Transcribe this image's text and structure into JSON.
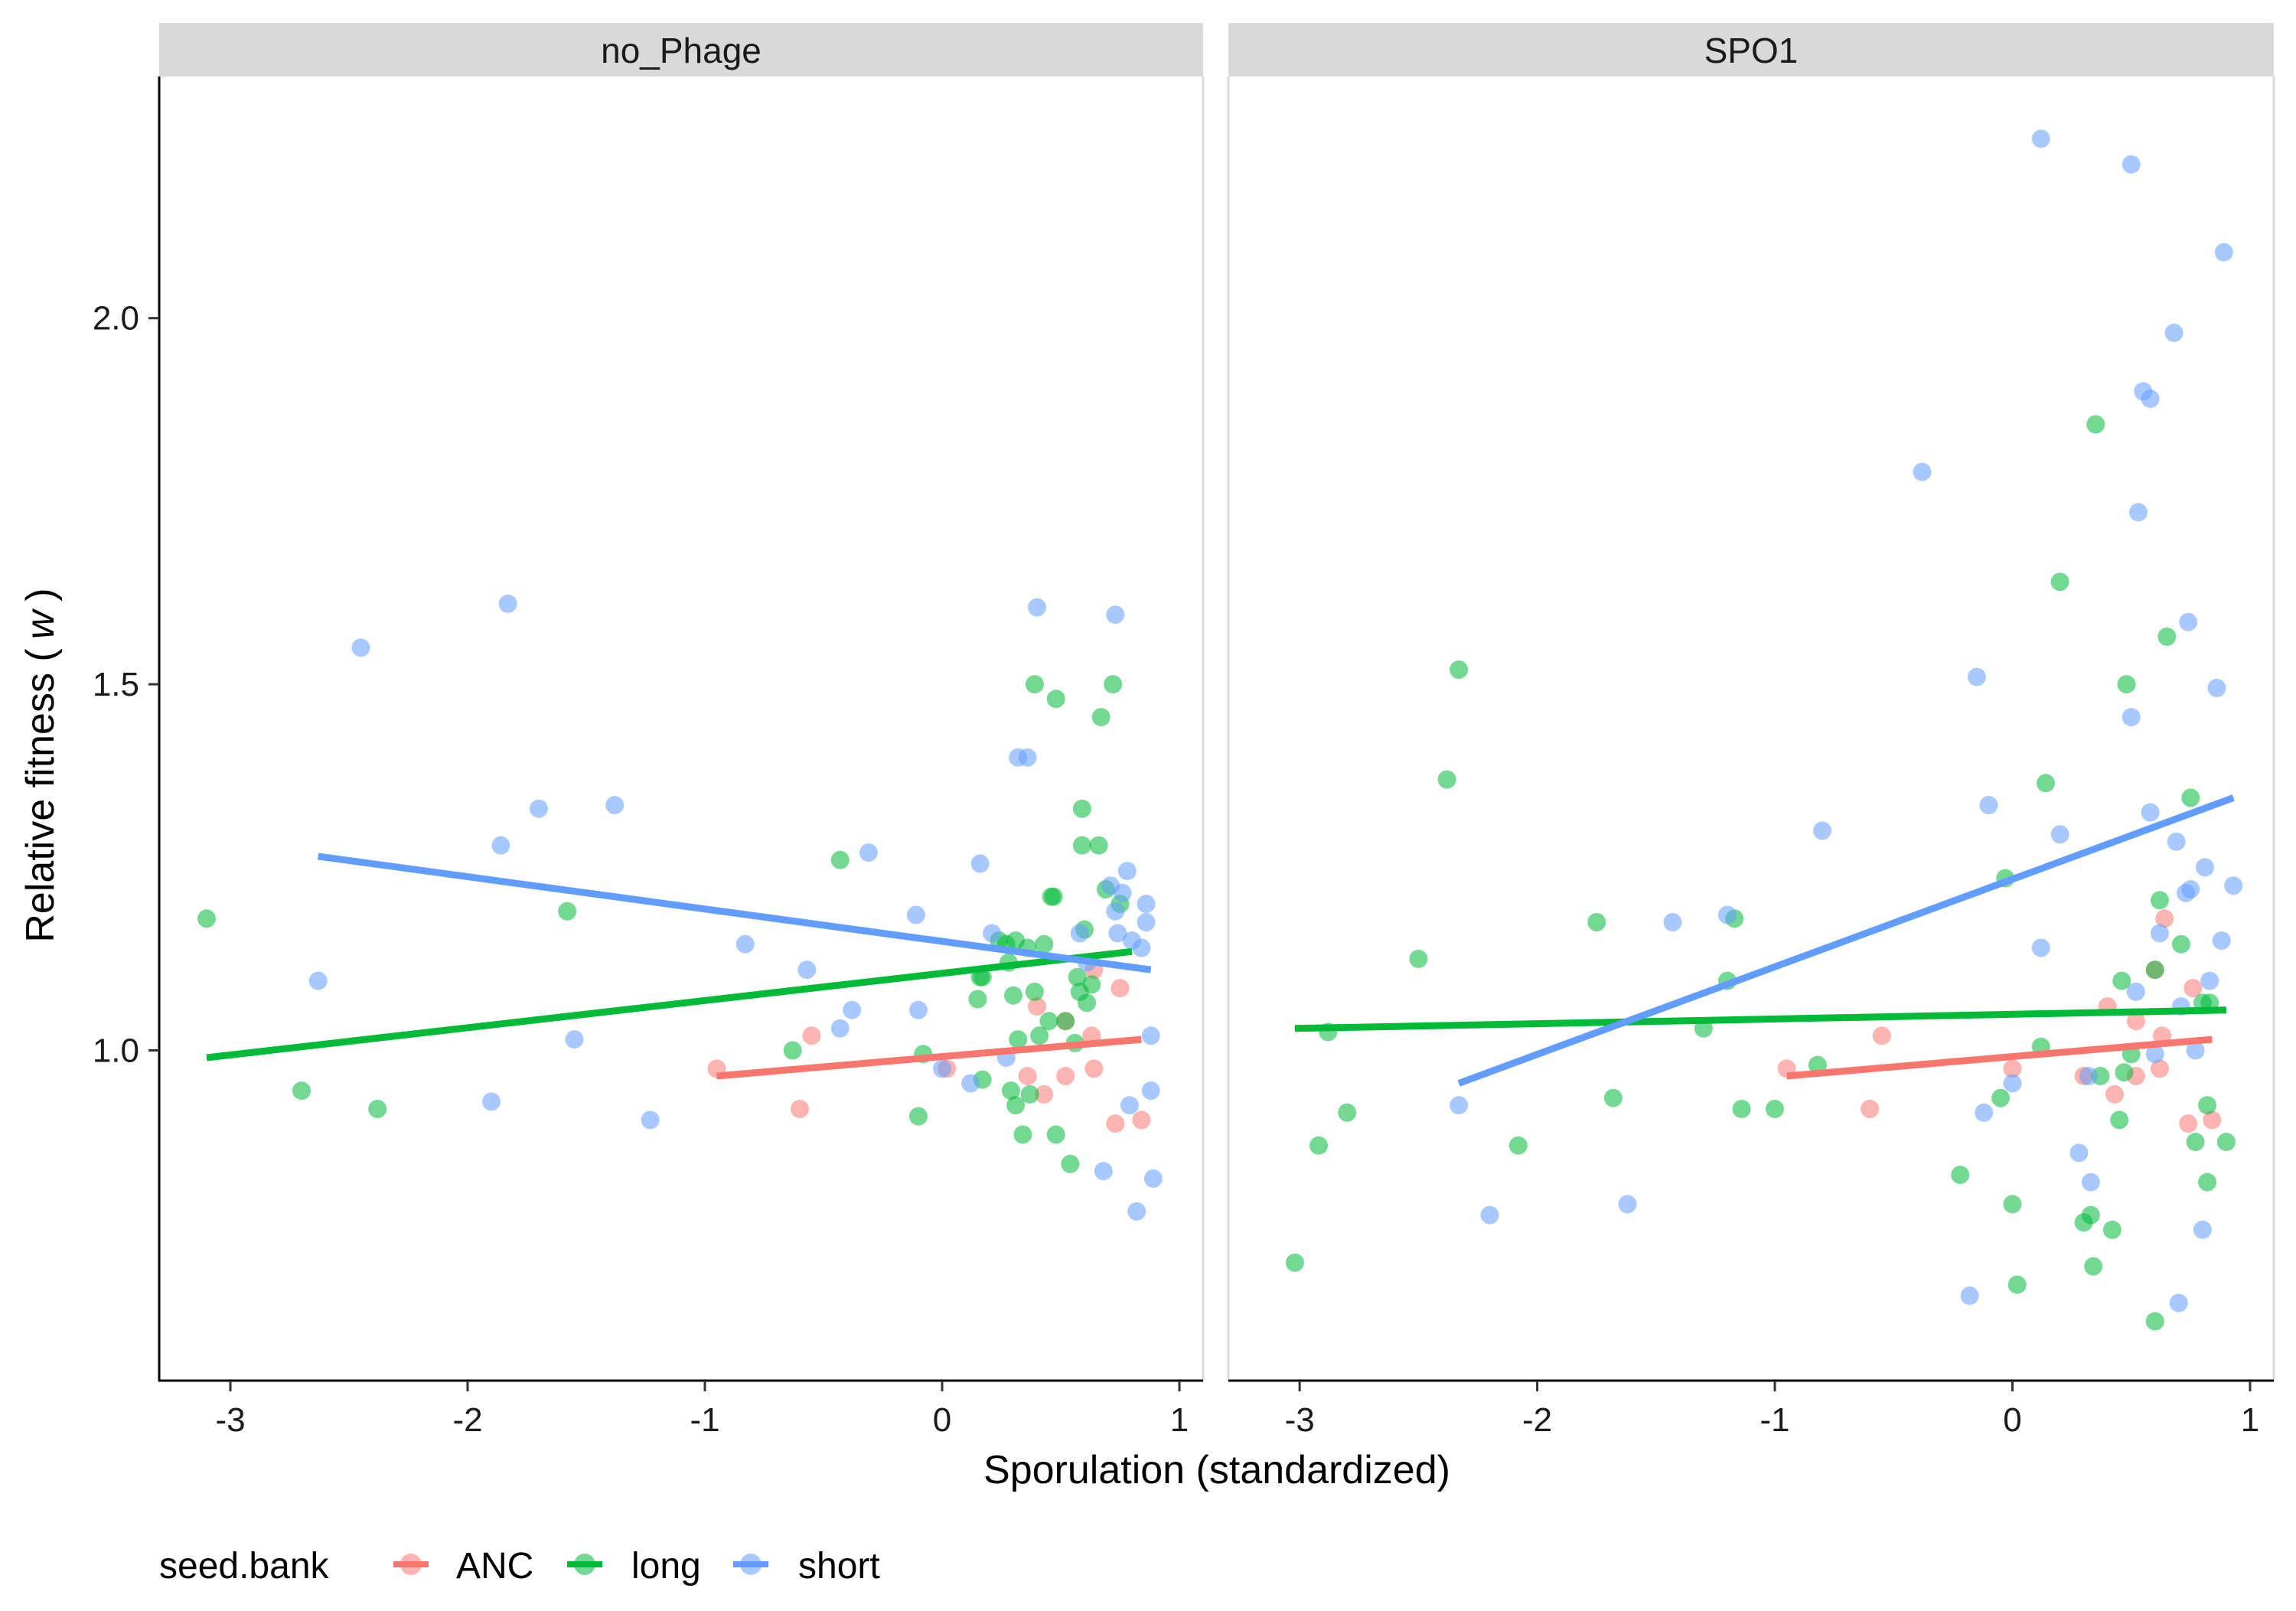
{
  "chart_data": {
    "type": "scatter",
    "xlabel": "Sporulation (standardized)",
    "ylabel_main": "Relative fitness (",
    "ylabel_italic": "w",
    "ylabel_end": ")",
    "xlim": [
      -3.3,
      1.1
    ],
    "ylim": [
      0.55,
      2.33
    ],
    "x_ticks": [
      -3,
      -2,
      -1,
      0,
      1
    ],
    "y_ticks": [
      1.0,
      1.5,
      2.0
    ],
    "y_tick_labels": [
      "1.0",
      "1.5",
      "2.0"
    ],
    "grid": false,
    "legend": {
      "title": "seed.bank",
      "position": "bottom-left",
      "entries": [
        "ANC",
        "long",
        "short"
      ]
    },
    "colors": {
      "ANC": "#F8766D",
      "long": "#00BA38",
      "short": "#619CFF"
    },
    "panels": [
      {
        "label": "no_Phage",
        "points": {
          "ANC": [
            [
              -0.95,
              0.975
            ],
            [
              -0.6,
              0.92
            ],
            [
              -0.55,
              1.02
            ],
            [
              0.02,
              0.975
            ],
            [
              0.36,
              0.965
            ],
            [
              0.4,
              1.06
            ],
            [
              0.43,
              0.94
            ],
            [
              0.52,
              1.04
            ],
            [
              0.52,
              0.965
            ],
            [
              0.63,
              1.02
            ],
            [
              0.64,
              1.11
            ],
            [
              0.64,
              0.975
            ],
            [
              0.73,
              0.9
            ],
            [
              0.75,
              1.085
            ],
            [
              0.84,
              0.905
            ]
          ],
          "long": [
            [
              -3.1,
              1.18
            ],
            [
              -2.7,
              0.945
            ],
            [
              -2.38,
              0.92
            ],
            [
              -1.58,
              1.19
            ],
            [
              -0.63,
              1.0
            ],
            [
              -0.43,
              1.26
            ],
            [
              -0.1,
              0.91
            ],
            [
              -0.08,
              0.995
            ],
            [
              0.15,
              1.07
            ],
            [
              0.16,
              1.1
            ],
            [
              0.17,
              1.1
            ],
            [
              0.17,
              0.96
            ],
            [
              0.24,
              1.15
            ],
            [
              0.27,
              1.145
            ],
            [
              0.28,
              1.12
            ],
            [
              0.29,
              0.945
            ],
            [
              0.3,
              1.075
            ],
            [
              0.31,
              0.925
            ],
            [
              0.31,
              1.15
            ],
            [
              0.32,
              1.015
            ],
            [
              0.34,
              0.885
            ],
            [
              0.36,
              1.14
            ],
            [
              0.37,
              0.94
            ],
            [
              0.39,
              1.5
            ],
            [
              0.39,
              1.08
            ],
            [
              0.41,
              1.02
            ],
            [
              0.43,
              1.145
            ],
            [
              0.45,
              1.04
            ],
            [
              0.46,
              1.21
            ],
            [
              0.47,
              1.21
            ],
            [
              0.48,
              0.885
            ],
            [
              0.48,
              1.48
            ],
            [
              0.52,
              1.04
            ],
            [
              0.54,
              0.845
            ],
            [
              0.56,
              1.01
            ],
            [
              0.57,
              1.1
            ],
            [
              0.58,
              1.08
            ],
            [
              0.59,
              1.33
            ],
            [
              0.59,
              1.28
            ],
            [
              0.6,
              1.165
            ],
            [
              0.61,
              1.065
            ],
            [
              0.63,
              1.09
            ],
            [
              0.66,
              1.28
            ],
            [
              0.67,
              1.455
            ],
            [
              0.69,
              1.22
            ],
            [
              0.72,
              1.5
            ],
            [
              0.75,
              1.2
            ]
          ],
          "short": [
            [
              -2.63,
              1.095
            ],
            [
              -2.45,
              1.55
            ],
            [
              -1.86,
              1.28
            ],
            [
              -1.83,
              1.61
            ],
            [
              -1.7,
              1.33
            ],
            [
              -1.9,
              0.93
            ],
            [
              -1.55,
              1.015
            ],
            [
              -1.38,
              1.335
            ],
            [
              -1.23,
              0.905
            ],
            [
              -0.83,
              1.145
            ],
            [
              -0.57,
              1.11
            ],
            [
              -0.43,
              1.03
            ],
            [
              -0.38,
              1.055
            ],
            [
              -0.31,
              1.27
            ],
            [
              -0.11,
              1.185
            ],
            [
              -0.1,
              1.055
            ],
            [
              0.0,
              0.975
            ],
            [
              0.12,
              0.955
            ],
            [
              0.16,
              1.255
            ],
            [
              0.21,
              1.16
            ],
            [
              0.27,
              0.99
            ],
            [
              0.32,
              1.4
            ],
            [
              0.36,
              1.4
            ],
            [
              0.4,
              1.605
            ],
            [
              0.58,
              1.16
            ],
            [
              0.61,
              1.12
            ],
            [
              0.68,
              0.835
            ],
            [
              0.71,
              1.225
            ],
            [
              0.73,
              1.595
            ],
            [
              0.73,
              1.19
            ],
            [
              0.74,
              1.16
            ],
            [
              0.76,
              1.215
            ],
            [
              0.78,
              1.245
            ],
            [
              0.79,
              0.925
            ],
            [
              0.8,
              1.15
            ],
            [
              0.82,
              0.78
            ],
            [
              0.84,
              1.14
            ],
            [
              0.86,
              1.2
            ],
            [
              0.86,
              1.175
            ],
            [
              0.88,
              1.02
            ],
            [
              0.88,
              0.945
            ],
            [
              0.89,
              0.825
            ]
          ]
        },
        "lines": {
          "ANC": [
            [
              -0.95,
              0.965
            ],
            [
              0.84,
              1.015
            ]
          ],
          "long": [
            [
              -3.1,
              0.99
            ],
            [
              0.8,
              1.135
            ]
          ],
          "short": [
            [
              -2.63,
              1.265
            ],
            [
              0.88,
              1.11
            ]
          ]
        }
      },
      {
        "label": "SPO1",
        "points": {
          "ANC": [
            [
              -0.95,
              0.975
            ],
            [
              -0.6,
              0.92
            ],
            [
              -0.55,
              1.02
            ],
            [
              0.0,
              0.975
            ],
            [
              0.3,
              0.965
            ],
            [
              0.4,
              1.06
            ],
            [
              0.43,
              0.94
            ],
            [
              0.52,
              1.04
            ],
            [
              0.52,
              0.965
            ],
            [
              0.6,
              1.11
            ],
            [
              0.62,
              0.975
            ],
            [
              0.63,
              1.02
            ],
            [
              0.64,
              1.18
            ],
            [
              0.74,
              0.9
            ],
            [
              0.76,
              1.085
            ],
            [
              0.84,
              0.905
            ]
          ],
          "long": [
            [
              -3.02,
              0.71
            ],
            [
              -2.92,
              0.87
            ],
            [
              -2.88,
              1.025
            ],
            [
              -2.8,
              0.915
            ],
            [
              -2.5,
              1.125
            ],
            [
              -2.38,
              1.37
            ],
            [
              -2.33,
              1.52
            ],
            [
              -2.08,
              0.87
            ],
            [
              -1.75,
              1.175
            ],
            [
              -1.68,
              0.935
            ],
            [
              -1.3,
              1.03
            ],
            [
              -1.2,
              1.095
            ],
            [
              -1.17,
              1.18
            ],
            [
              -1.14,
              0.92
            ],
            [
              -1.0,
              0.92
            ],
            [
              -0.82,
              0.98
            ],
            [
              -0.22,
              0.83
            ],
            [
              -0.05,
              0.935
            ],
            [
              -0.03,
              1.235
            ],
            [
              0.0,
              0.79
            ],
            [
              0.02,
              0.68
            ],
            [
              0.12,
              1.005
            ],
            [
              0.14,
              1.365
            ],
            [
              0.2,
              1.64
            ],
            [
              0.3,
              0.765
            ],
            [
              0.33,
              0.775
            ],
            [
              0.34,
              0.705
            ],
            [
              0.35,
              1.855
            ],
            [
              0.37,
              0.965
            ],
            [
              0.42,
              0.755
            ],
            [
              0.45,
              0.905
            ],
            [
              0.46,
              1.095
            ],
            [
              0.47,
              0.97
            ],
            [
              0.48,
              1.5
            ],
            [
              0.5,
              0.995
            ],
            [
              0.6,
              1.11
            ],
            [
              0.6,
              0.63
            ],
            [
              0.62,
              1.205
            ],
            [
              0.65,
              1.565
            ],
            [
              0.71,
              1.145
            ],
            [
              0.75,
              1.345
            ],
            [
              0.77,
              0.875
            ],
            [
              0.8,
              1.065
            ],
            [
              0.82,
              0.925
            ],
            [
              0.82,
              0.82
            ],
            [
              0.83,
              1.065
            ],
            [
              0.9,
              0.875
            ]
          ],
          "short": [
            [
              -2.33,
              0.925
            ],
            [
              -2.2,
              0.775
            ],
            [
              -1.62,
              0.79
            ],
            [
              -1.43,
              1.175
            ],
            [
              -1.2,
              1.185
            ],
            [
              -0.8,
              1.3
            ],
            [
              -0.38,
              1.79
            ],
            [
              -0.18,
              0.665
            ],
            [
              -0.15,
              1.51
            ],
            [
              -0.12,
              0.915
            ],
            [
              -0.1,
              1.335
            ],
            [
              0.0,
              0.955
            ],
            [
              0.12,
              2.245
            ],
            [
              0.12,
              1.14
            ],
            [
              0.2,
              1.295
            ],
            [
              0.28,
              0.86
            ],
            [
              0.32,
              0.965
            ],
            [
              0.33,
              0.82
            ],
            [
              0.5,
              2.21
            ],
            [
              0.5,
              1.455
            ],
            [
              0.52,
              1.08
            ],
            [
              0.53,
              1.735
            ],
            [
              0.55,
              1.9
            ],
            [
              0.58,
              1.89
            ],
            [
              0.58,
              1.325
            ],
            [
              0.6,
              0.995
            ],
            [
              0.62,
              1.16
            ],
            [
              0.68,
              1.98
            ],
            [
              0.69,
              1.285
            ],
            [
              0.7,
              0.655
            ],
            [
              0.71,
              1.06
            ],
            [
              0.73,
              1.215
            ],
            [
              0.74,
              1.585
            ],
            [
              0.75,
              1.22
            ],
            [
              0.77,
              1.0
            ],
            [
              0.8,
              0.755
            ],
            [
              0.81,
              1.25
            ],
            [
              0.83,
              1.095
            ],
            [
              0.86,
              1.495
            ],
            [
              0.88,
              1.15
            ],
            [
              0.89,
              2.09
            ],
            [
              0.93,
              1.225
            ]
          ]
        },
        "lines": {
          "ANC": [
            [
              -0.95,
              0.965
            ],
            [
              0.84,
              1.015
            ]
          ],
          "long": [
            [
              -3.02,
              1.03
            ],
            [
              0.9,
              1.055
            ]
          ],
          "short": [
            [
              -2.33,
              0.955
            ],
            [
              0.93,
              1.345
            ]
          ]
        }
      }
    ]
  }
}
